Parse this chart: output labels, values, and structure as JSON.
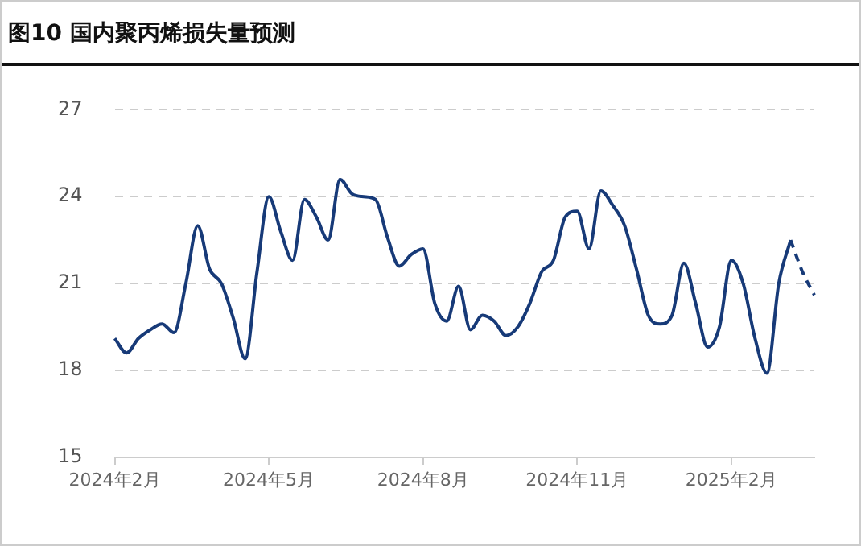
{
  "chart_data": {
    "type": "line",
    "title": "图10 国内聚丙烯损失量预测",
    "categories": [
      "2024年2月",
      null,
      null,
      null,
      null,
      null,
      null,
      null,
      null,
      null,
      null,
      null,
      null,
      "2024年5月",
      null,
      null,
      null,
      null,
      null,
      null,
      null,
      null,
      null,
      null,
      null,
      null,
      "2024年8月",
      null,
      null,
      null,
      null,
      null,
      null,
      null,
      null,
      null,
      null,
      null,
      null,
      "2024年11月",
      null,
      null,
      null,
      null,
      null,
      null,
      null,
      null,
      null,
      null,
      null,
      null,
      "2025年2月",
      null,
      null,
      null,
      null,
      null,
      null,
      null
    ],
    "series": [
      {
        "color": "#173a78",
        "line_style": "solid",
        "values": [
          19.1,
          18.6,
          19.1,
          19.4,
          19.6,
          19.3,
          21.0,
          23.0,
          21.5,
          21.0,
          19.8,
          18.4,
          21.4,
          24.0,
          22.8,
          21.8,
          23.9,
          23.3,
          22.5,
          24.6,
          24.1,
          24.0,
          23.9,
          22.6,
          21.6,
          22.0,
          22.2,
          20.3,
          19.7,
          20.9,
          19.4,
          19.9,
          19.7,
          19.2,
          19.5,
          20.3,
          21.4,
          21.8,
          23.3,
          23.5,
          22.2,
          24.2,
          23.7,
          23.0,
          21.5,
          19.9,
          19.6,
          19.9,
          21.7,
          20.3,
          18.8,
          19.5,
          21.8,
          21.0,
          19.1,
          17.9,
          21.0,
          22.5,
          null,
          null
        ]
      },
      {
        "color": "#173a78",
        "line_style": "dashed",
        "values": [
          null,
          null,
          null,
          null,
          null,
          null,
          null,
          null,
          null,
          null,
          null,
          null,
          null,
          null,
          null,
          null,
          null,
          null,
          null,
          null,
          null,
          null,
          null,
          null,
          null,
          null,
          null,
          null,
          null,
          null,
          null,
          null,
          null,
          null,
          null,
          null,
          null,
          null,
          null,
          null,
          null,
          null,
          null,
          null,
          null,
          null,
          null,
          null,
          null,
          null,
          null,
          null,
          null,
          null,
          null,
          null,
          null,
          22.5,
          21.4,
          20.6
        ]
      }
    ],
    "ylim": [
      15,
      27
    ],
    "yticks": [
      15,
      18,
      21,
      24,
      27
    ],
    "grid": "y",
    "legend": false,
    "marker": "none"
  }
}
